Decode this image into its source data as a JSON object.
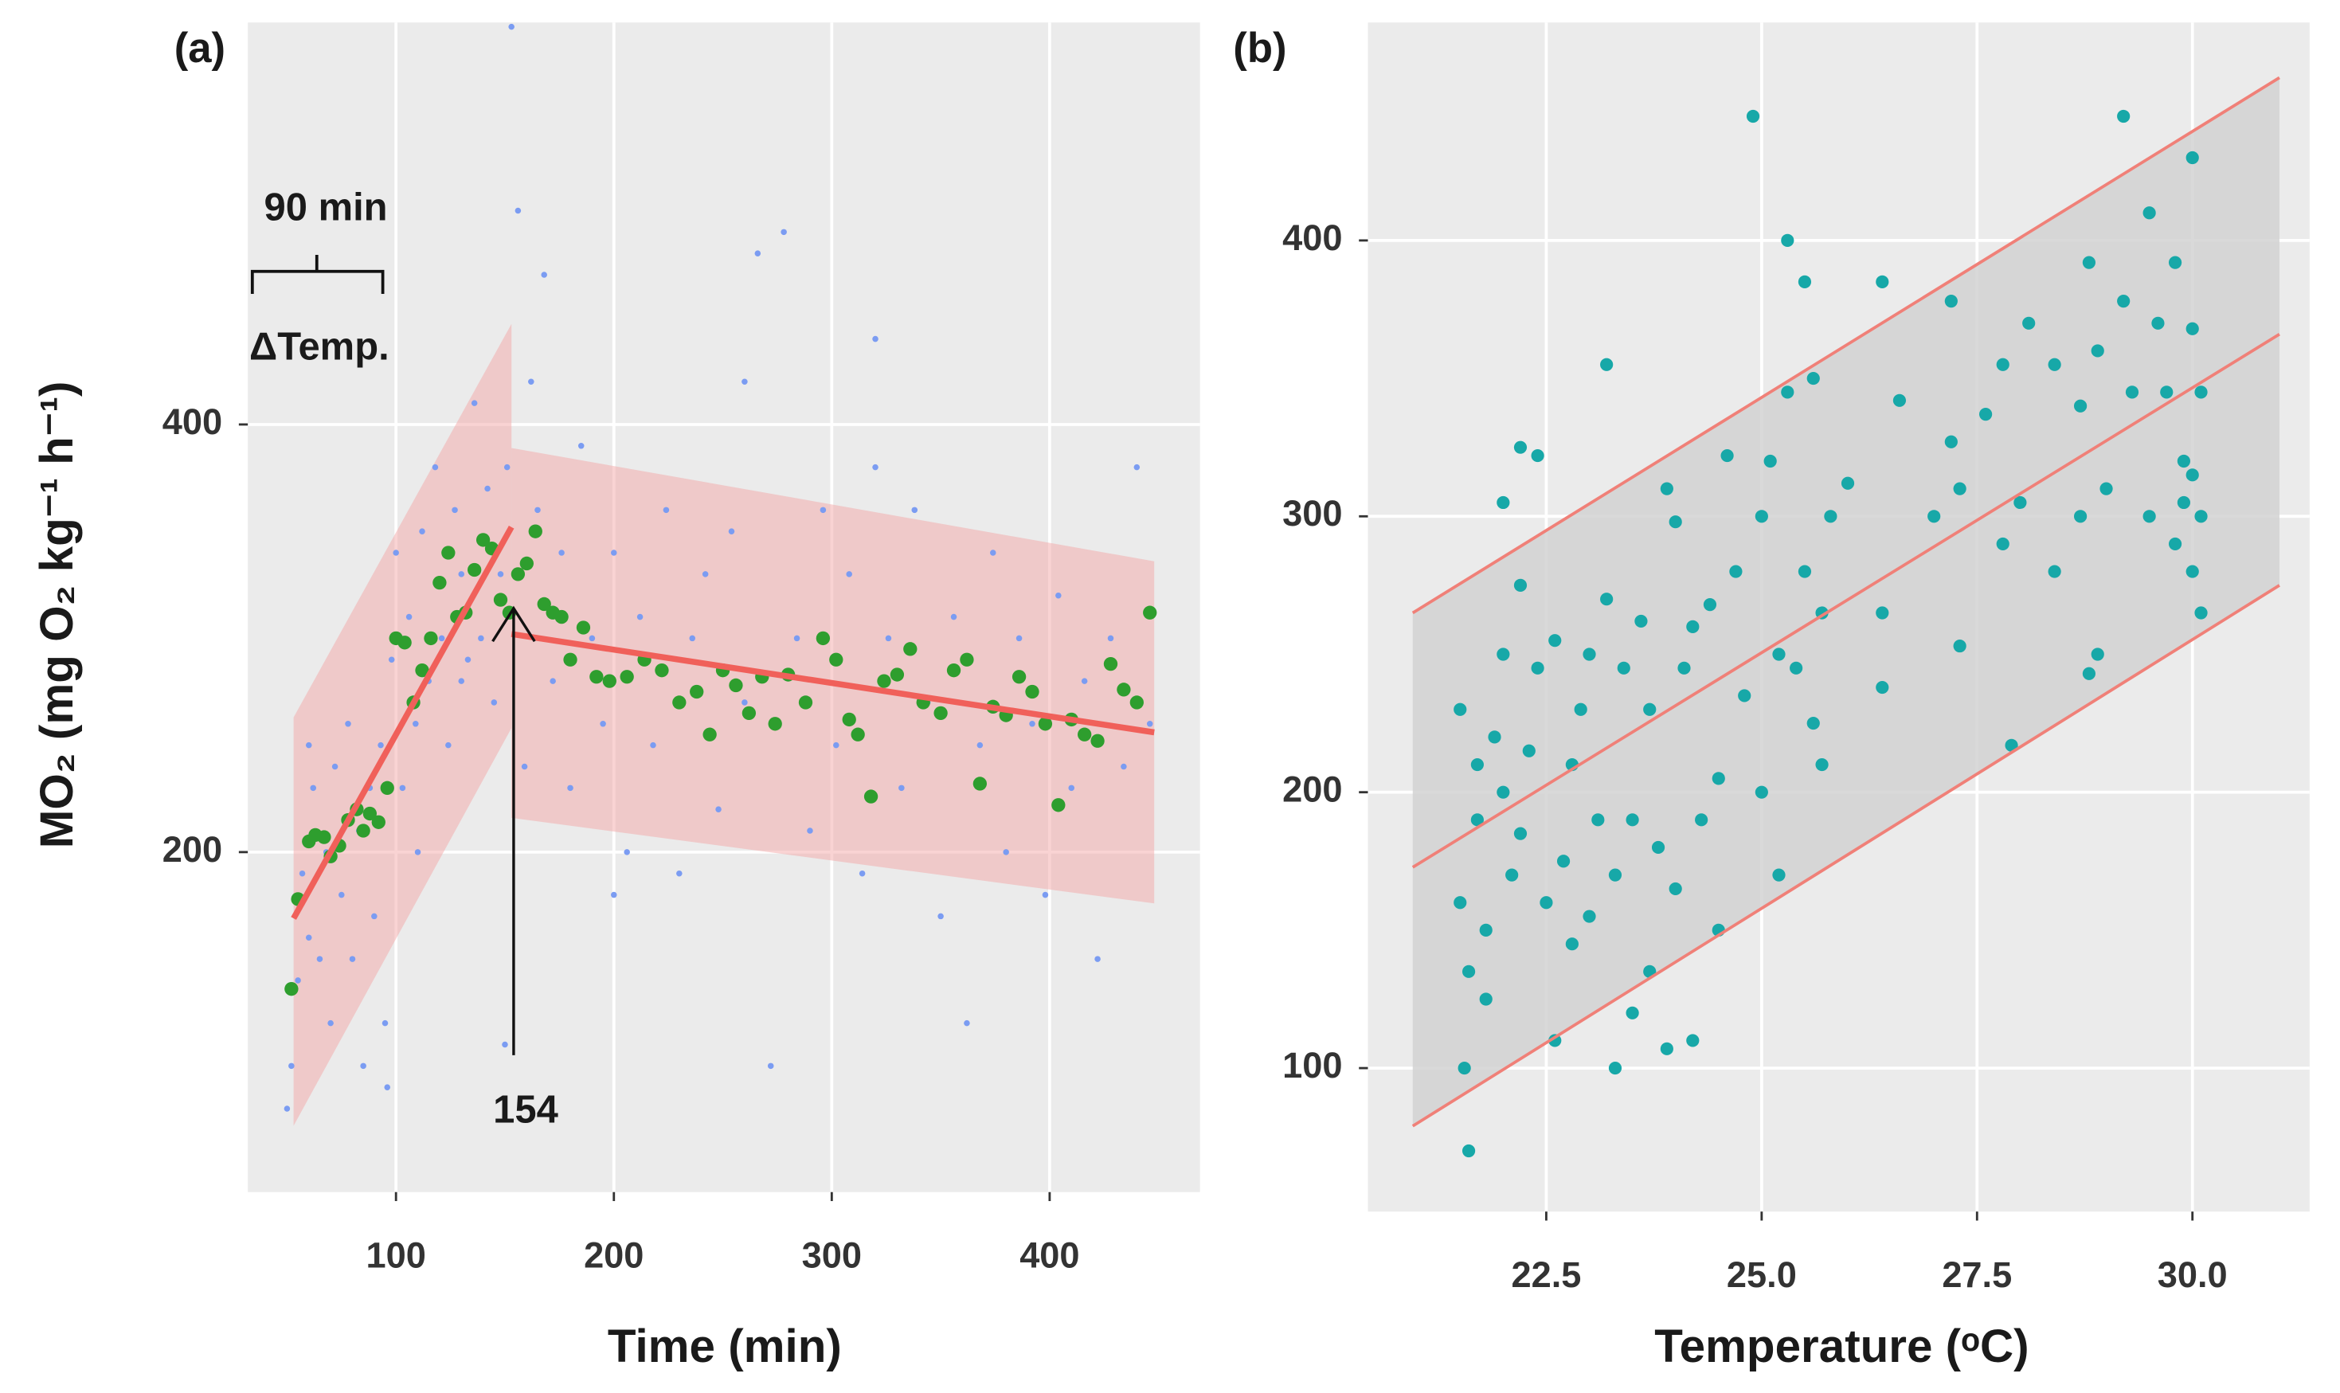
{
  "chart_data": [
    {
      "type": "scatter",
      "panel": "(a)",
      "xlabel": "Time (min)",
      "ylabel": "MO₂ (mg O₂ kg⁻¹ h⁻¹)",
      "xlim": [
        32,
        469
      ],
      "ylim": [
        41,
        588
      ],
      "xticks": [
        100,
        200,
        300,
        400
      ],
      "yticks": [
        200,
        400
      ],
      "grid": true,
      "annotations": [
        {
          "label": "90 min"
        },
        {
          "label": "ΔTemp."
        }
      ],
      "arrow": {
        "x": 154,
        "y_from": 105,
        "y_to": 314,
        "label": "154"
      },
      "series": [
        {
          "kind": "band",
          "color": "#f4a8a8",
          "x": [
            53,
            153
          ],
          "lower": [
            72,
            258
          ],
          "upper": [
            263,
            447
          ]
        },
        {
          "kind": "band",
          "color": "#f4a8a8",
          "x": [
            153,
            448
          ],
          "lower": [
            216,
            176
          ],
          "upper": [
            389,
            336
          ]
        },
        {
          "kind": "points",
          "color": "#7b9cf2",
          "x": [
            50,
            52,
            55,
            57,
            60,
            62,
            65,
            68,
            70,
            72,
            75,
            78,
            80,
            83,
            85,
            88,
            90,
            93,
            95,
            98,
            100,
            103,
            106,
            109,
            112,
            115,
            118,
            121,
            124,
            127,
            130,
            133,
            136,
            139,
            142,
            145,
            148,
            151,
            153,
            156,
            159,
            162,
            165,
            168,
            172,
            176,
            180,
            185,
            190,
            195,
            200,
            206,
            212,
            218,
            224,
            230,
            236,
            242,
            248,
            254,
            260,
            266,
            272,
            278,
            284,
            290,
            296,
            302,
            308,
            314,
            320,
            326,
            332,
            338,
            344,
            350,
            356,
            362,
            368,
            374,
            380,
            386,
            392,
            398,
            404,
            410,
            416,
            422,
            428,
            434,
            440,
            446,
            150,
            110,
            60,
            96,
            200,
            320,
            260,
            130
          ],
          "y": [
            80,
            100,
            140,
            190,
            160,
            230,
            150,
            200,
            120,
            240,
            180,
            260,
            150,
            210,
            100,
            230,
            170,
            250,
            120,
            290,
            340,
            230,
            310,
            260,
            350,
            280,
            380,
            300,
            250,
            360,
            330,
            290,
            410,
            300,
            370,
            270,
            330,
            380,
            586,
            500,
            240,
            420,
            360,
            470,
            280,
            340,
            230,
            390,
            300,
            260,
            340,
            200,
            310,
            250,
            360,
            190,
            300,
            330,
            220,
            350,
            270,
            480,
            100,
            490,
            300,
            210,
            360,
            250,
            330,
            190,
            440,
            300,
            230,
            360,
            270,
            170,
            310,
            120,
            250,
            340,
            200,
            300,
            260,
            180,
            320,
            230,
            280,
            150,
            300,
            240,
            380,
            260,
            110,
            200,
            250,
            90,
            180,
            380,
            420,
            280
          ]
        },
        {
          "kind": "points",
          "color": "#2e9e2e",
          "x": [
            52,
            55,
            60,
            63,
            67,
            70,
            74,
            78,
            82,
            85,
            88,
            92,
            96,
            100,
            104,
            108,
            112,
            116,
            120,
            124,
            128,
            132,
            136,
            140,
            144,
            148,
            152,
            156,
            160,
            164,
            168,
            172,
            176,
            180,
            186,
            192,
            198,
            206,
            214,
            222,
            230,
            238,
            244,
            250,
            256,
            262,
            268,
            274,
            280,
            288,
            296,
            302,
            308,
            312,
            318,
            324,
            330,
            336,
            342,
            350,
            356,
            362,
            368,
            374,
            380,
            386,
            392,
            398,
            404,
            410,
            416,
            422,
            428,
            434,
            440,
            446
          ],
          "y": [
            136,
            178,
            205,
            208,
            207,
            198,
            203,
            215,
            220,
            210,
            218,
            214,
            230,
            300,
            298,
            270,
            285,
            300,
            326,
            340,
            310,
            312,
            332,
            346,
            342,
            318,
            312,
            330,
            335,
            350,
            316,
            312,
            310,
            290,
            305,
            282,
            280,
            282,
            290,
            285,
            270,
            275,
            255,
            285,
            278,
            265,
            282,
            260,
            283,
            270,
            300,
            290,
            262,
            255,
            226,
            280,
            283,
            295,
            270,
            265,
            285,
            290,
            232,
            268,
            264,
            282,
            275,
            260,
            222,
            262,
            255,
            252,
            288,
            276,
            270,
            312
          ]
        },
        {
          "kind": "line",
          "color": "#f0605a",
          "x": [
            53,
            153
          ],
          "y": [
            169,
            352
          ]
        },
        {
          "kind": "line",
          "color": "#f0605a",
          "x": [
            153,
            448
          ],
          "y": [
            302,
            256
          ]
        }
      ]
    },
    {
      "type": "scatter",
      "panel": "(b)",
      "xlabel": "Temperature (ᵒC)",
      "xlim": [
        20.43,
        31.36
      ],
      "ylim": [
        48,
        479
      ],
      "xticks": [
        22.5,
        {
          "value": 25,
          "label": "25.0"
        },
        27.5,
        {
          "value": 30,
          "label": "30.0"
        }
      ],
      "yticks": [
        100,
        200,
        300,
        400
      ],
      "grid": true,
      "series": [
        {
          "kind": "band",
          "color": "#d2d2d2",
          "x": [
            20.95,
            31.01
          ],
          "lower": [
            79,
            275
          ],
          "upper": [
            265,
            459
          ]
        },
        {
          "kind": "points",
          "color": "#17a8a8",
          "x": [
            21.5,
            21.5,
            21.55,
            21.6,
            21.6,
            21.7,
            21.7,
            21.8,
            21.8,
            21.9,
            22.0,
            22.0,
            22.0,
            22.1,
            22.2,
            22.2,
            22.3,
            22.4,
            22.4,
            22.5,
            22.6,
            22.6,
            22.7,
            22.8,
            22.8,
            22.9,
            23.0,
            23.1,
            23.2,
            23.2,
            23.3,
            23.3,
            23.4,
            23.5,
            23.5,
            23.6,
            23.7,
            23.7,
            23.8,
            23.9,
            23.9,
            24.0,
            24.0,
            24.1,
            24.2,
            24.2,
            24.3,
            24.4,
            24.5,
            24.6,
            24.7,
            24.8,
            24.9,
            25.0,
            25.0,
            25.1,
            25.2,
            25.2,
            25.3,
            25.3,
            25.4,
            25.5,
            25.5,
            25.6,
            25.7,
            25.7,
            25.8,
            26.0,
            26.4,
            26.4,
            26.4,
            26.6,
            27.2,
            27.2,
            27.3,
            27.3,
            27.6,
            27.8,
            27.8,
            27.9,
            28.0,
            28.1,
            28.4,
            28.4,
            28.7,
            28.7,
            28.8,
            28.8,
            28.9,
            28.9,
            29.0,
            29.2,
            29.2,
            29.3,
            29.5,
            29.5,
            29.6,
            29.7,
            29.8,
            29.8,
            29.9,
            30.0,
            30.0,
            30.0,
            30.0,
            30.1,
            30.1,
            30.1,
            29.9,
            22.2,
            23.0,
            24.5,
            25.6,
            27.0
          ],
          "y": [
            230,
            160,
            100,
            70,
            135,
            210,
            190,
            150,
            125,
            220,
            305,
            250,
            200,
            170,
            325,
            275,
            215,
            322,
            245,
            160,
            255,
            110,
            175,
            210,
            145,
            230,
            250,
            190,
            355,
            270,
            100,
            170,
            245,
            120,
            190,
            262,
            230,
            135,
            180,
            310,
            107,
            298,
            165,
            245,
            260,
            110,
            190,
            268,
            205,
            322,
            280,
            235,
            445,
            300,
            200,
            320,
            250,
            170,
            400,
            345,
            245,
            385,
            280,
            350,
            265,
            210,
            300,
            312,
            385,
            265,
            238,
            342,
            378,
            327,
            310,
            253,
            337,
            355,
            290,
            217,
            305,
            370,
            355,
            280,
            340,
            300,
            392,
            243,
            360,
            250,
            310,
            445,
            378,
            345,
            410,
            300,
            370,
            345,
            392,
            290,
            305,
            430,
            368,
            315,
            280,
            300,
            265,
            345,
            320,
            185,
            155,
            150,
            225,
            300
          ]
        },
        {
          "kind": "line",
          "color": "#f08078",
          "x": [
            20.95,
            31.01
          ],
          "y": [
            265,
            459
          ]
        },
        {
          "kind": "line",
          "color": "#f08078",
          "x": [
            20.95,
            31.01
          ],
          "y": [
            172.8,
            366
          ]
        },
        {
          "kind": "line",
          "color": "#f08078",
          "x": [
            20.95,
            31.01
          ],
          "y": [
            79,
            275
          ]
        }
      ]
    }
  ]
}
